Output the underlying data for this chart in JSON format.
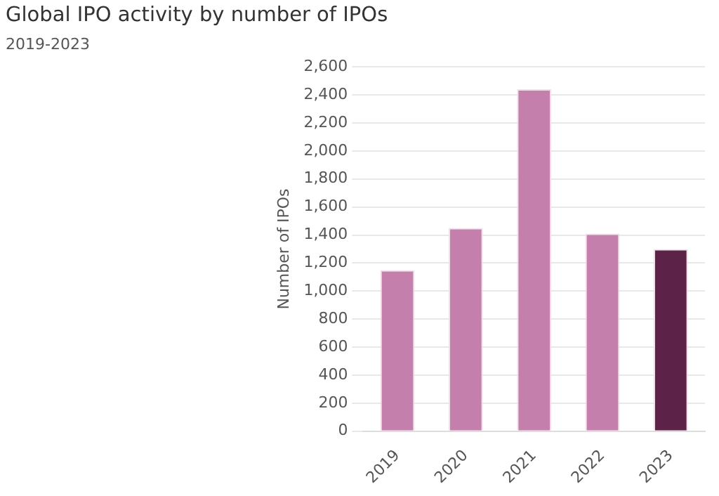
{
  "chart_data": {
    "type": "bar",
    "title": "Global IPO activity by number of IPOs",
    "subtitle": "2019-2023",
    "ylabel": "Number of IPOs",
    "categories": [
      "2019",
      "2020",
      "2021",
      "2022",
      "2023"
    ],
    "values": [
      1150,
      1450,
      2440,
      1410,
      1300
    ],
    "colors": [
      "#c47fac",
      "#c47fac",
      "#c47fac",
      "#c47fac",
      "#5c2248"
    ],
    "ylim": [
      0,
      2600
    ],
    "yticks": [
      0,
      200,
      400,
      600,
      800,
      {
        "value": 1000,
        "label": "1,000"
      },
      {
        "value": 1200,
        "label": "1,200"
      },
      {
        "value": 1400,
        "label": "1,400"
      },
      {
        "value": 1600,
        "label": "1,600"
      },
      {
        "value": 1800,
        "label": "1,800"
      },
      {
        "value": 2000,
        "label": "2,000"
      },
      {
        "value": 2200,
        "label": "2,200"
      },
      {
        "value": 2400,
        "label": "2,400"
      },
      {
        "value": 2600,
        "label": "2,600"
      }
    ],
    "grid": "y",
    "legend": false
  }
}
